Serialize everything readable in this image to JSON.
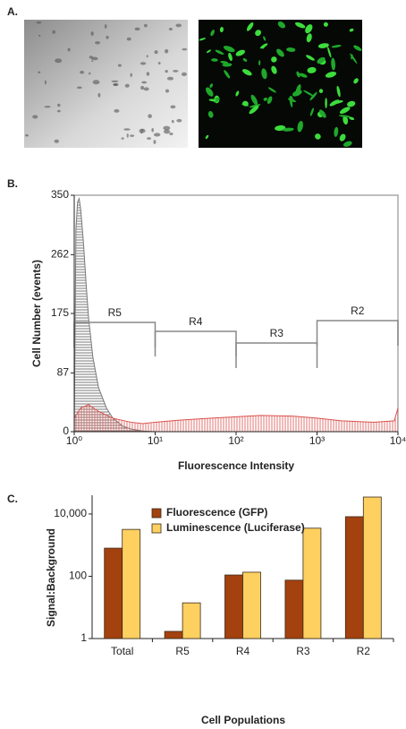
{
  "panel_labels": [
    "A.",
    "B.",
    "C."
  ],
  "chart_data": [
    {
      "type": "area",
      "xlabel": "Fluorescence Intensity",
      "ylabel": "Cell Number (events)",
      "xlog": true,
      "xlim": [
        1,
        10000
      ],
      "xticks": [
        {
          "value": 1,
          "label": "10⁰"
        },
        {
          "value": 10,
          "label": "10¹"
        },
        {
          "value": 100,
          "label": "10²"
        },
        {
          "value": 1000,
          "label": "10³"
        },
        {
          "value": 10000,
          "label": "10⁴"
        }
      ],
      "ylim": [
        0,
        350
      ],
      "yticks": [
        0,
        87,
        175,
        262,
        350
      ],
      "series": [
        {
          "color": "#7a7a7a",
          "x": [
            1,
            1.05,
            1.1,
            1.15,
            1.2,
            1.3,
            1.4,
            1.5,
            1.7,
            2,
            2.5,
            3,
            4,
            5,
            7,
            10
          ],
          "values": [
            0,
            300,
            340,
            345,
            330,
            280,
            220,
            170,
            110,
            65,
            35,
            20,
            8,
            4,
            1,
            0
          ]
        },
        {
          "color": "#d9534f",
          "x": [
            1,
            1.2,
            1.5,
            2,
            3,
            5,
            7,
            10,
            20,
            50,
            100,
            200,
            500,
            1000,
            2000,
            5000,
            9000,
            10000
          ],
          "values": [
            20,
            35,
            40,
            30,
            20,
            14,
            12,
            14,
            17,
            20,
            22,
            24,
            23,
            20,
            16,
            14,
            16,
            35
          ]
        }
      ],
      "gates": [
        {
          "name": "R5",
          "range": [
            1,
            10
          ]
        },
        {
          "name": "R4",
          "range": [
            10,
            100
          ]
        },
        {
          "name": "R3",
          "range": [
            100,
            1000
          ]
        },
        {
          "name": "R2",
          "range": [
            1000,
            10000
          ]
        }
      ]
    },
    {
      "type": "bar",
      "xlabel": "Cell Populations",
      "ylabel": "Signal:Background",
      "ylog": true,
      "ylim": [
        1,
        40000
      ],
      "yticks": [
        1,
        100,
        {
          "value": 10000,
          "label": "10,000"
        }
      ],
      "categories": [
        "Total",
        "R5",
        "R4",
        "R3",
        "R2"
      ],
      "series": [
        {
          "name": "Fluorescence (GFP)",
          "color": "#a3410f",
          "values": [
            800,
            1.7,
            110,
            75,
            8200
          ]
        },
        {
          "name": "Luminescence (Luciferase)",
          "color": "#fdd060",
          "values": [
            3200,
            14,
            135,
            3500,
            35000
          ]
        }
      ]
    }
  ]
}
